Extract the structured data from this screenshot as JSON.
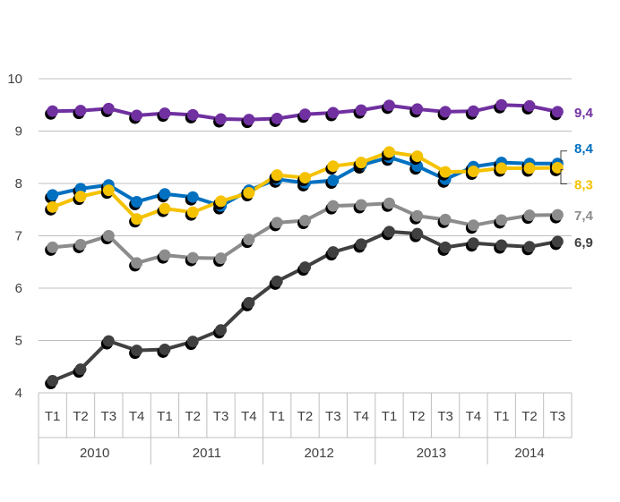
{
  "chart_data": {
    "type": "line",
    "title": "",
    "xlabel": "",
    "ylabel": "",
    "ylim": [
      4,
      10
    ],
    "yticks": [
      "4",
      "5",
      "6",
      "7",
      "8",
      "9",
      "10"
    ],
    "grid": true,
    "quarters": [
      "T1",
      "T2",
      "T3",
      "T4",
      "T1",
      "T2",
      "T3",
      "T4",
      "T1",
      "T2",
      "T3",
      "T4",
      "T1",
      "T2",
      "T3",
      "T4",
      "T1",
      "T2",
      "T3"
    ],
    "years": [
      {
        "label": "2010",
        "count": 4
      },
      {
        "label": "2011",
        "count": 4
      },
      {
        "label": "2012",
        "count": 4
      },
      {
        "label": "2013",
        "count": 4
      },
      {
        "label": "2014",
        "count": 3
      }
    ],
    "series": [
      {
        "name": "purple",
        "color": "#7030A0",
        "end_label": "9,4",
        "values": [
          9.38,
          9.39,
          9.43,
          9.3,
          9.34,
          9.31,
          9.23,
          9.22,
          9.24,
          9.32,
          9.35,
          9.4,
          9.49,
          9.42,
          9.37,
          9.38,
          9.5,
          9.48,
          9.37
        ]
      },
      {
        "name": "blue",
        "color": "#0070C0",
        "end_label": "8,4",
        "values": [
          7.78,
          7.9,
          7.97,
          7.65,
          7.8,
          7.74,
          7.57,
          7.87,
          8.08,
          8.01,
          8.06,
          8.35,
          8.5,
          8.33,
          8.08,
          8.32,
          8.4,
          8.38,
          8.38
        ]
      },
      {
        "name": "yellow",
        "color": "#F5C200",
        "end_label": "8,3",
        "values": [
          7.55,
          7.75,
          7.87,
          7.32,
          7.52,
          7.45,
          7.66,
          7.82,
          8.16,
          8.11,
          8.33,
          8.4,
          8.6,
          8.52,
          8.22,
          8.23,
          8.29,
          8.29,
          8.3
        ]
      },
      {
        "name": "lightgray",
        "color": "#8C8C8C",
        "end_label": "7,4",
        "values": [
          6.78,
          6.83,
          7.0,
          6.48,
          6.63,
          6.58,
          6.57,
          6.93,
          7.25,
          7.29,
          7.57,
          7.59,
          7.62,
          7.38,
          7.31,
          7.2,
          7.3,
          7.39,
          7.4
        ]
      },
      {
        "name": "darkgray",
        "color": "#404040",
        "end_label": "6,9",
        "values": [
          4.23,
          4.45,
          4.99,
          4.81,
          4.83,
          4.98,
          5.2,
          5.72,
          6.13,
          6.4,
          6.69,
          6.84,
          7.08,
          7.04,
          6.78,
          6.86,
          6.82,
          6.79,
          6.89
        ]
      }
    ]
  }
}
